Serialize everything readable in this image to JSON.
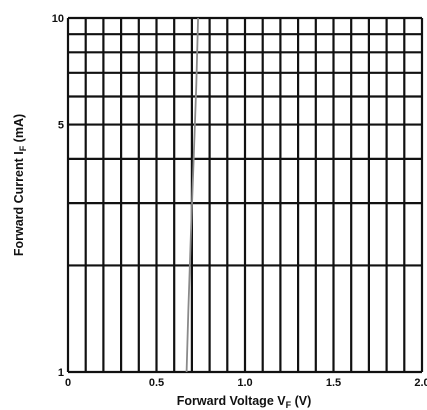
{
  "chart_data": {
    "type": "line",
    "title": "",
    "xlabel": "Forward Voltage  V",
    "xlabel_sub": "F",
    "xlabel_unit": " (V)",
    "ylabel": "Forward Current  I",
    "ylabel_sub": "F",
    "ylabel_unit": " (mA)",
    "xlim": [
      0,
      2.0
    ],
    "ylim": [
      1,
      10
    ],
    "yscale": "log",
    "grid": true,
    "x_ticks": [
      {
        "value": 0,
        "label": "0"
      },
      {
        "value": 0.5,
        "label": "0.5"
      },
      {
        "value": 1.0,
        "label": "1.0"
      },
      {
        "value": 1.5,
        "label": "1.5"
      },
      {
        "value": 2.0,
        "label": "2.0"
      }
    ],
    "y_ticks": [
      {
        "value": 1,
        "label": "1"
      },
      {
        "value": 5,
        "label": "5"
      },
      {
        "value": 10,
        "label": "10"
      }
    ],
    "x_gridlines": [
      0,
      0.1,
      0.2,
      0.3,
      0.4,
      0.5,
      0.6,
      0.7,
      0.8,
      0.9,
      1.0,
      1.1,
      1.2,
      1.3,
      1.4,
      1.5,
      1.6,
      1.7,
      1.8,
      1.9,
      2.0
    ],
    "y_gridlines": [
      1,
      2,
      3,
      4,
      5,
      6,
      7,
      8,
      9,
      10
    ],
    "series": [
      {
        "color": "#8a8a8a",
        "points": [
          {
            "x": 0.67,
            "y": 1.0
          },
          {
            "x": 0.68,
            "y": 1.5
          },
          {
            "x": 0.695,
            "y": 2.5
          },
          {
            "x": 0.71,
            "y": 4.0
          },
          {
            "x": 0.725,
            "y": 6.5
          },
          {
            "x": 0.735,
            "y": 10.0
          }
        ]
      }
    ]
  }
}
